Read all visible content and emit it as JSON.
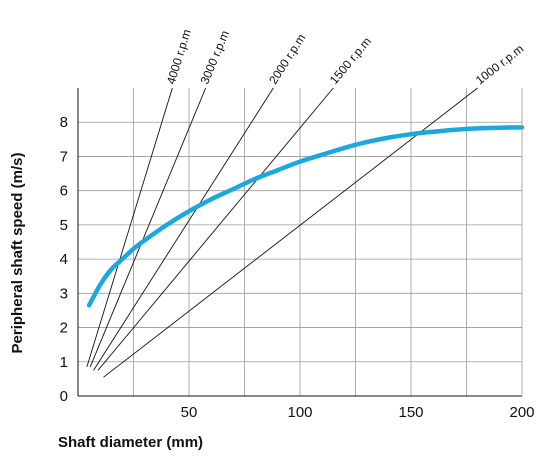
{
  "chart_data": {
    "type": "line",
    "title": "",
    "xlabel": "Shaft diameter  (mm)",
    "ylabel": "Peripheral shaft speed  (m/s)",
    "xlim": [
      0,
      200
    ],
    "ylim": [
      0,
      9
    ],
    "x_ticks": [
      50,
      100,
      150,
      200
    ],
    "y_ticks": [
      0,
      1,
      2,
      3,
      4,
      5,
      6,
      7,
      8
    ],
    "x_grid_step": 25,
    "grid": true,
    "curve": {
      "color": "#19a8e0",
      "x": [
        5,
        10,
        15,
        20,
        25,
        30,
        40,
        50,
        60,
        70,
        80,
        90,
        100,
        110,
        120,
        130,
        140,
        150,
        160,
        170,
        180,
        190,
        200
      ],
      "y": [
        2.65,
        3.25,
        3.7,
        4.0,
        4.3,
        4.55,
        5.0,
        5.4,
        5.75,
        6.05,
        6.35,
        6.6,
        6.85,
        7.05,
        7.25,
        7.42,
        7.55,
        7.65,
        7.72,
        7.78,
        7.82,
        7.84,
        7.85
      ]
    },
    "series": [
      {
        "name": "4000 r.p.m",
        "rpm": 4000,
        "x": [
          4,
          42.5
        ],
        "y": [
          0.85,
          9.0
        ]
      },
      {
        "name": "3000 r.p.m",
        "rpm": 3000,
        "x": [
          5.5,
          57.5
        ],
        "y": [
          0.85,
          9.0
        ]
      },
      {
        "name": "2000 r.p.m",
        "rpm": 2000,
        "x": [
          7,
          88
        ],
        "y": [
          0.75,
          9.0
        ]
      },
      {
        "name": "1500 r.p.m",
        "rpm": 1500,
        "x": [
          9,
          115
        ],
        "y": [
          0.75,
          9.0
        ]
      },
      {
        "name": "1000 r.p.m",
        "rpm": 1000,
        "x": [
          11.5,
          180
        ],
        "y": [
          0.55,
          9.0
        ]
      }
    ]
  }
}
